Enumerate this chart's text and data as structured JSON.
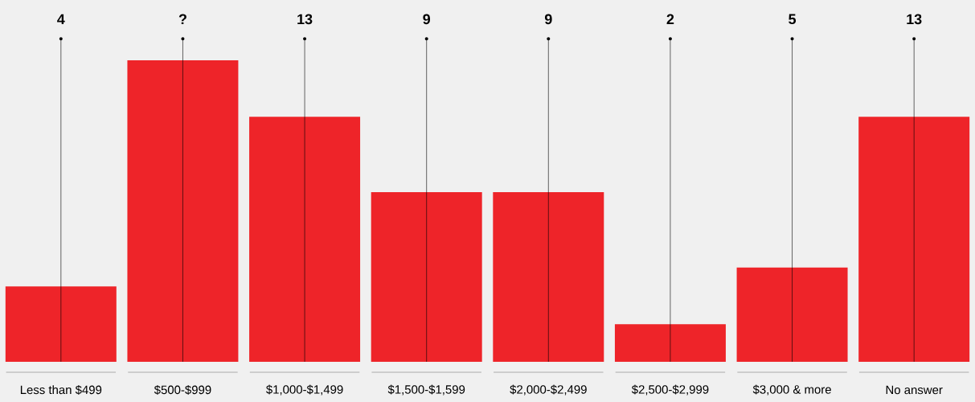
{
  "chart_data": {
    "type": "bar",
    "categories": [
      "Less than $499",
      "$500-$999",
      "$1,000-$1,499",
      "$1,500-$1,599",
      "$2,000-$2,499",
      "$2,500-$2,999",
      "$3,000 & more",
      "No answer"
    ],
    "values": [
      4,
      16,
      13,
      9,
      9,
      2,
      5,
      13
    ],
    "value_labels": [
      "4",
      "?",
      "13",
      "9",
      "9",
      "2",
      "5",
      "13"
    ],
    "color": "#ee2429",
    "grid": "x"
  }
}
